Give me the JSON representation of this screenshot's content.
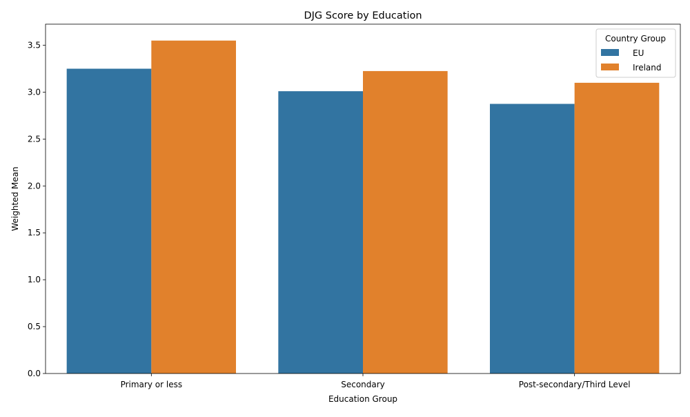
{
  "chart_data": {
    "type": "bar",
    "title": "DJG Score by Education",
    "xlabel": "Education Group",
    "ylabel": "Weighted Mean",
    "categories": [
      "Primary or less",
      "Secondary",
      "Post-secondary/Third Level"
    ],
    "series": [
      {
        "name": "EU",
        "values": [
          3.25,
          3.01,
          2.875
        ],
        "color": "#3274a1"
      },
      {
        "name": "Ireland",
        "values": [
          3.55,
          3.225,
          3.1
        ],
        "color": "#e1812c"
      }
    ],
    "ylim": [
      0,
      3.725
    ],
    "yticks": [
      "0.0",
      "0.5",
      "1.0",
      "1.5",
      "2.0",
      "2.5",
      "3.0",
      "3.5"
    ],
    "ytick_values": [
      0,
      0.5,
      1.0,
      1.5,
      2.0,
      2.5,
      3.0,
      3.5
    ],
    "grid": false,
    "legend": {
      "title": "Country Group",
      "placement": "top-right"
    }
  }
}
